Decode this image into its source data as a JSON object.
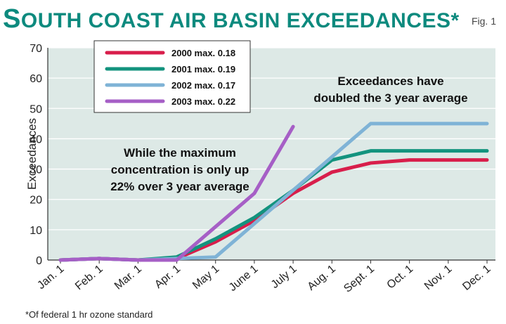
{
  "header": {
    "title_cap": "S",
    "title_rest": "OUTH COAST AIR BASIN EXCEEDANCES*",
    "fig_label": "Fig. 1"
  },
  "footnote": "*Of federal 1 hr ozone standard",
  "chart_data": {
    "type": "line",
    "title": "South coast air basin exceedances*",
    "xlabel": "",
    "ylabel": "Exceedances",
    "ylim": [
      0,
      70
    ],
    "yticks": [
      0,
      10,
      20,
      30,
      40,
      50,
      60,
      70
    ],
    "grid": true,
    "legend_position": "top-left",
    "categories": [
      "Jan. 1",
      "Feb. 1",
      "Mar. 1",
      "Apr. 1",
      "May 1",
      "June 1",
      "July 1",
      "Aug. 1",
      "Sept. 1",
      "Oct. 1",
      "Nov. 1",
      "Dec. 1"
    ],
    "series": [
      {
        "name": "2000 max. 0.18",
        "color": "#d81e4b",
        "points": [
          [
            0,
            0
          ],
          [
            1,
            0.5
          ],
          [
            2,
            0
          ],
          [
            3,
            0.5
          ],
          [
            4,
            6
          ],
          [
            5,
            13
          ],
          [
            6,
            22
          ],
          [
            7,
            29
          ],
          [
            8,
            32
          ],
          [
            9,
            33
          ],
          [
            10,
            33
          ],
          [
            11,
            33
          ]
        ]
      },
      {
        "name": "2001 max. 0.19",
        "color": "#13937e",
        "points": [
          [
            0,
            0
          ],
          [
            1,
            0.5
          ],
          [
            2,
            0
          ],
          [
            3,
            1
          ],
          [
            4,
            7
          ],
          [
            5,
            14
          ],
          [
            6,
            23
          ],
          [
            7,
            33
          ],
          [
            8,
            36
          ],
          [
            9,
            36
          ],
          [
            10,
            36
          ],
          [
            11,
            36
          ]
        ]
      },
      {
        "name": "2002 max. 0.17",
        "color": "#7fb3d6",
        "points": [
          [
            0,
            0
          ],
          [
            1,
            0.5
          ],
          [
            2,
            0
          ],
          [
            3,
            0.5
          ],
          [
            4,
            1
          ],
          [
            5,
            12
          ],
          [
            6,
            23
          ],
          [
            7,
            34
          ],
          [
            8,
            45
          ],
          [
            9,
            45
          ],
          [
            10,
            45
          ],
          [
            11,
            45
          ]
        ]
      },
      {
        "name": "2003 max. 0.22",
        "color": "#a65fc6",
        "points": [
          [
            0,
            0
          ],
          [
            1,
            0.5
          ],
          [
            2,
            0
          ],
          [
            3,
            0
          ],
          [
            4,
            11
          ],
          [
            5,
            22
          ],
          [
            6,
            44
          ]
        ]
      }
    ],
    "annotations": [
      {
        "lines": [
          "Exceedances have",
          "doubled the 3 year average"
        ]
      },
      {
        "lines": [
          "While the maximum",
          "concentration is only up",
          "22% over 3 year average"
        ]
      }
    ]
  }
}
